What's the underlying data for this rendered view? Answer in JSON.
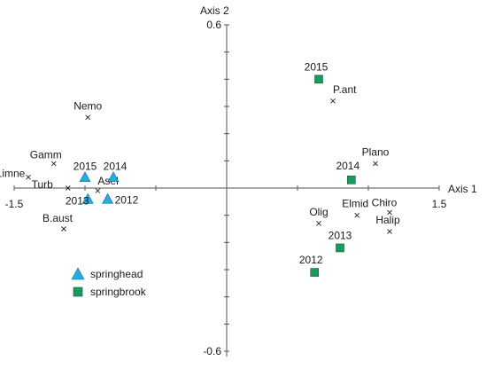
{
  "chart_data": {
    "type": "scatter",
    "title": "",
    "xlabel": "Axis 1",
    "ylabel": "Axis 2",
    "xlim": [
      -1.5,
      1.5
    ],
    "ylim": [
      -0.6,
      0.6
    ],
    "grid": false,
    "xtick_labels": [
      "-1.5",
      "1.5"
    ],
    "ytick_labels": [
      "0.6",
      "-0.6"
    ],
    "legend_position": "bottom-left",
    "legend": [
      {
        "name": "springhead",
        "marker": "triangle",
        "color": "#2aa8df"
      },
      {
        "name": "springbrook",
        "marker": "square",
        "color": "#1a9a5e"
      }
    ],
    "series": [
      {
        "name": "springhead",
        "marker": "triangle",
        "color": "#2aa8df",
        "points": [
          {
            "label": "2015",
            "x": -1.0,
            "y": 0.04
          },
          {
            "label": "2014",
            "x": -0.8,
            "y": 0.04
          },
          {
            "label": "2013",
            "x": -0.98,
            "y": -0.04
          },
          {
            "label": "2012",
            "x": -0.84,
            "y": -0.04
          }
        ]
      },
      {
        "name": "springbrook",
        "marker": "square",
        "color": "#1a9a5e",
        "points": [
          {
            "label": "2015",
            "x": 0.65,
            "y": 0.4
          },
          {
            "label": "2014",
            "x": 0.88,
            "y": 0.03
          },
          {
            "label": "2013",
            "x": 0.8,
            "y": -0.22
          },
          {
            "label": "2012",
            "x": 0.62,
            "y": -0.31
          }
        ]
      }
    ],
    "species": [
      {
        "label": "Nemo",
        "x": -0.98,
        "y": 0.26
      },
      {
        "label": "Gamm",
        "x": -1.22,
        "y": 0.09
      },
      {
        "label": "Limne",
        "x": -1.4,
        "y": 0.04
      },
      {
        "label": "Turb",
        "x": -1.12,
        "y": 0.0
      },
      {
        "label": "Asel",
        "x": -0.91,
        "y": -0.01
      },
      {
        "label": "B.aust",
        "x": -1.15,
        "y": -0.15
      },
      {
        "label": "P.ant",
        "x": 0.75,
        "y": 0.32
      },
      {
        "label": "Plano",
        "x": 1.05,
        "y": 0.09
      },
      {
        "label": "Elmid",
        "x": 0.92,
        "y": -0.1
      },
      {
        "label": "Olig",
        "x": 0.65,
        "y": -0.13
      },
      {
        "label": "Chiro",
        "x": 1.15,
        "y": -0.09
      },
      {
        "label": "Halip",
        "x": 1.15,
        "y": -0.16
      }
    ]
  }
}
